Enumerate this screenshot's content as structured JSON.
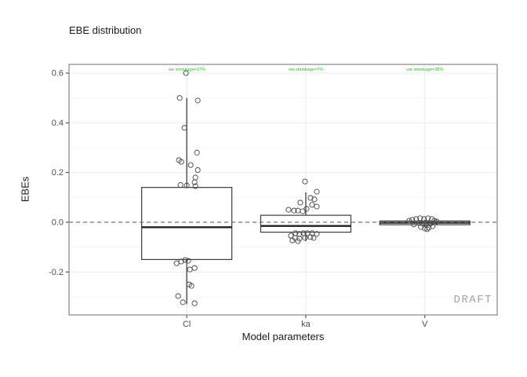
{
  "figure": {
    "title": "EBE distribution",
    "watermark": "DRAFT"
  },
  "chart_data": {
    "type": "boxplot",
    "title": "EBE distribution",
    "xlabel": "Model parameters",
    "ylabel": "EBEs",
    "categories": [
      "Cl",
      "ka",
      "V"
    ],
    "ylim": [
      -0.373,
      0.635
    ],
    "yticks": [
      0.6,
      0.4,
      0.2,
      0.0,
      -0.2
    ],
    "ytick_labels": [
      "0.6",
      "0.4",
      "0.2",
      "0.0",
      "-0.2"
    ],
    "yticks_minor": [
      0.5,
      0.3,
      0.1,
      -0.1,
      -0.3
    ],
    "reference_line_y": 0,
    "grid": true,
    "annotations": [
      {
        "category": "Cl",
        "text": "var shrinkage=17%"
      },
      {
        "category": "ka",
        "text": "var shrinkage=7%"
      },
      {
        "category": "V",
        "text": "var shrinkage=38%"
      }
    ],
    "boxes": [
      {
        "category": "Cl",
        "q1": -0.15,
        "median": -0.02,
        "q3": 0.14,
        "whisker_low": -0.33,
        "whisker_high": 0.5
      },
      {
        "category": "ka",
        "q1": -0.04,
        "median": -0.015,
        "q3": 0.028,
        "whisker_low": -0.076,
        "whisker_high": 0.12
      },
      {
        "category": "V",
        "q1": -0.01,
        "median": -0.002,
        "q3": 0.005,
        "whisker_low": -0.02,
        "whisker_high": 0.01
      }
    ],
    "points": {
      "Cl": [
        [
          -1,
          0.6
        ],
        [
          -9,
          0.5
        ],
        [
          14,
          0.49
        ],
        [
          -3,
          0.38
        ],
        [
          13,
          0.28
        ],
        [
          -10,
          0.25
        ],
        [
          -7,
          0.243
        ],
        [
          5,
          0.23
        ],
        [
          14,
          0.21
        ],
        [
          11,
          0.18
        ],
        [
          10,
          0.161
        ],
        [
          -8,
          0.15
        ],
        [
          0,
          0.148
        ],
        [
          11,
          0.145
        ],
        [
          -13,
          -0.165
        ],
        [
          -7,
          -0.158
        ],
        [
          -2,
          -0.152
        ],
        [
          2,
          -0.155
        ],
        [
          4,
          -0.19
        ],
        [
          10,
          -0.184
        ],
        [
          3,
          -0.25
        ],
        [
          6,
          -0.256
        ],
        [
          -11,
          -0.297
        ],
        [
          -5,
          -0.322
        ],
        [
          10,
          -0.326
        ]
      ],
      "ka": [
        [
          -1,
          0.164
        ],
        [
          14,
          0.123
        ],
        [
          6,
          0.098
        ],
        [
          11,
          0.092
        ],
        [
          -7,
          0.079
        ],
        [
          8,
          0.07
        ],
        [
          14,
          0.063
        ],
        [
          1,
          0.054
        ],
        [
          -22,
          0.05
        ],
        [
          -15,
          0.047
        ],
        [
          -10,
          0.047
        ],
        [
          -4,
          0.044
        ],
        [
          -13,
          -0.044
        ],
        [
          -8,
          -0.047
        ],
        [
          -3,
          -0.044
        ],
        [
          2,
          -0.044
        ],
        [
          8,
          -0.044
        ],
        [
          14,
          -0.047
        ],
        [
          -19,
          -0.054
        ],
        [
          -14,
          -0.063
        ],
        [
          -8,
          -0.066
        ],
        [
          -1,
          -0.063
        ],
        [
          6,
          -0.06
        ],
        [
          10,
          -0.063
        ],
        [
          -17,
          -0.073
        ],
        [
          -10,
          -0.076
        ]
      ],
      "V": [
        [
          -16,
          0.01
        ],
        [
          -11,
          0.013
        ],
        [
          -6,
          0.016
        ],
        [
          -1,
          0.013
        ],
        [
          4,
          0.016
        ],
        [
          9,
          0.013
        ],
        [
          12,
          0.006
        ],
        [
          15,
          0.003
        ],
        [
          -20,
          0.006
        ],
        [
          -8,
          -0.003
        ],
        [
          -3,
          -0.006
        ],
        [
          2,
          -0.003
        ],
        [
          7,
          -0.006
        ],
        [
          -14,
          -0.009
        ],
        [
          -5,
          -0.019
        ],
        [
          0,
          -0.025
        ],
        [
          5,
          -0.022
        ],
        [
          10,
          -0.016
        ],
        [
          3,
          -0.028
        ]
      ]
    },
    "colors": {
      "box_stroke": "#3c3c3c",
      "median": "#1f1f1f",
      "point": "#4d4d4d",
      "reference_line": "#666666",
      "panel_border": "#858585",
      "grid_major": "#ebebeb",
      "grid_minor": "#f5f5f5",
      "annotation_green": "#00dd00",
      "tick_label": "#4d4d4d",
      "tick_mark": "#333333"
    }
  }
}
